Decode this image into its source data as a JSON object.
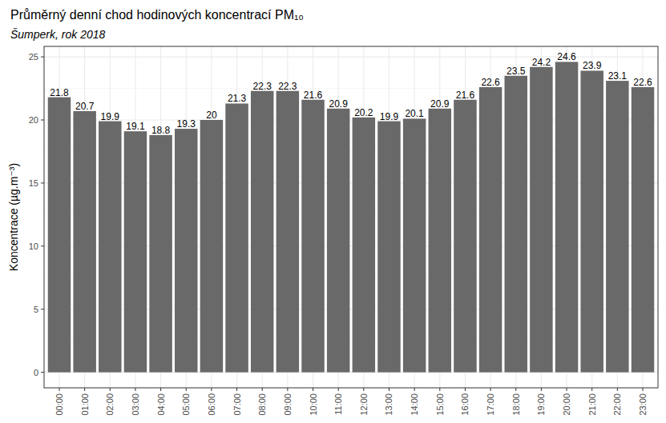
{
  "chart_data": {
    "type": "bar",
    "title": "Průměrný denní chod hodinových koncentrací PM₁₀",
    "subtitle": "Šumperk, rok 2018",
    "y_label": "Koncentrace (µg.m⁻³)",
    "categories": [
      "00:00",
      "01:00",
      "02:00",
      "03:00",
      "04:00",
      "05:00",
      "06:00",
      "07:00",
      "08:00",
      "09:00",
      "10:00",
      "11:00",
      "12:00",
      "13:00",
      "14:00",
      "15:00",
      "16:00",
      "17:00",
      "18:00",
      "19:00",
      "20:00",
      "21:00",
      "22:00",
      "23:00"
    ],
    "values": [
      21.8,
      20.7,
      19.9,
      19.1,
      18.8,
      19.3,
      20,
      21.3,
      22.3,
      22.3,
      21.6,
      20.9,
      20.2,
      19.9,
      20.1,
      20.9,
      21.6,
      22.6,
      23.5,
      24.2,
      24.6,
      23.9,
      23.1,
      22.6
    ],
    "color": "#696969",
    "ylim": [
      -1.23,
      25.83
    ],
    "yticks": [
      0,
      5,
      10,
      15,
      20,
      25
    ],
    "grid": true,
    "data_labels": true
  }
}
